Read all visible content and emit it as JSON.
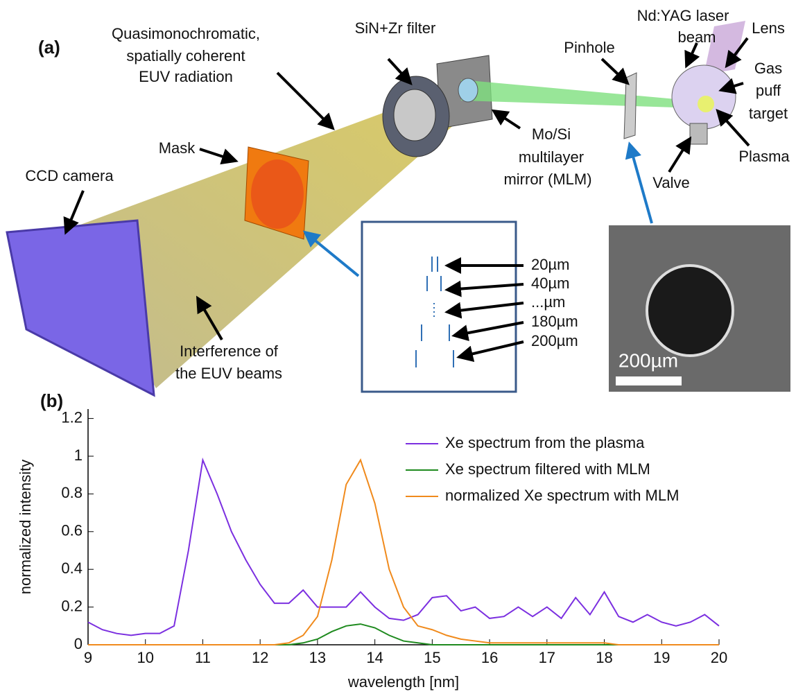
{
  "diagram": {
    "panel_a": "(a)",
    "quasi": [
      "Quasimonochromatic,",
      "spatially coherent",
      "EUV radiation"
    ],
    "filter": "SiN+Zr filter",
    "pinhole": "Pinhole",
    "laser": [
      "Nd:YAG laser",
      "beam"
    ],
    "lens": "Lens",
    "gas": [
      "Gas",
      "puff",
      "target"
    ],
    "plasma": "Plasma",
    "valve": "Valve",
    "mirror": [
      "Mo/Si",
      "multilayer",
      "mirror (MLM)"
    ],
    "mask": "Mask",
    "ccd": "CCD camera",
    "interference": [
      "Interference of",
      "the EUV beams"
    ],
    "slits": [
      "20µm",
      "40µm",
      "...µm",
      "180µm",
      "200µm"
    ],
    "scale_bar": "200µm",
    "panel_b": "(b)"
  },
  "chart_data": {
    "type": "line",
    "x_label": "wavelength [nm]",
    "y_label": "normalized intensity",
    "x": [
      9,
      9.25,
      9.5,
      9.75,
      10,
      10.25,
      10.5,
      10.75,
      11,
      11.25,
      11.5,
      11.75,
      12,
      12.25,
      12.5,
      12.75,
      13,
      13.25,
      13.5,
      13.75,
      14,
      14.25,
      14.5,
      14.75,
      15,
      15.25,
      15.5,
      15.75,
      16,
      16.25,
      16.5,
      16.75,
      17,
      17.25,
      17.5,
      17.75,
      18,
      18.25,
      18.5,
      18.75,
      19,
      19.25,
      19.5,
      19.75,
      20
    ],
    "series": [
      {
        "name": "Xe spectrum from the plasma",
        "color": "#7b2fe0",
        "values": [
          0.12,
          0.08,
          0.06,
          0.05,
          0.06,
          0.06,
          0.1,
          0.5,
          0.98,
          0.8,
          0.6,
          0.45,
          0.32,
          0.22,
          0.22,
          0.29,
          0.2,
          0.2,
          0.2,
          0.28,
          0.2,
          0.14,
          0.13,
          0.16,
          0.25,
          0.26,
          0.18,
          0.2,
          0.14,
          0.15,
          0.2,
          0.15,
          0.2,
          0.14,
          0.25,
          0.16,
          0.28,
          0.15,
          0.12,
          0.16,
          0.12,
          0.1,
          0.12,
          0.16,
          0.1
        ]
      },
      {
        "name": "Xe spectrum filtered with MLM",
        "color": "#1e8a1e",
        "values": [
          0,
          0,
          0,
          0,
          0,
          0,
          0,
          0,
          0,
          0,
          0,
          0,
          0,
          0,
          0,
          0.01,
          0.03,
          0.07,
          0.1,
          0.11,
          0.09,
          0.05,
          0.02,
          0.01,
          0,
          0,
          0,
          0,
          0,
          0,
          0,
          0,
          0,
          0,
          0,
          0,
          0,
          0,
          0,
          0,
          0,
          0,
          0,
          0,
          0
        ]
      },
      {
        "name": "normalized Xe spectrum with MLM",
        "color": "#f08a1c",
        "values": [
          0,
          0,
          0,
          0,
          0,
          0,
          0,
          0,
          0,
          0,
          0,
          0,
          0,
          0,
          0.01,
          0.05,
          0.15,
          0.45,
          0.85,
          0.98,
          0.75,
          0.4,
          0.2,
          0.1,
          0.08,
          0.05,
          0.03,
          0.02,
          0.01,
          0.01,
          0.01,
          0.01,
          0.01,
          0.01,
          0.01,
          0.01,
          0.01,
          0,
          0,
          0,
          0,
          0,
          0,
          0,
          0
        ]
      }
    ],
    "xlim": [
      9,
      20
    ],
    "xticks": [
      9,
      10,
      11,
      12,
      13,
      14,
      15,
      16,
      17,
      18,
      19,
      20
    ],
    "ylim": [
      0,
      1.25
    ],
    "yticks": [
      0,
      0.2,
      0.4,
      0.6,
      0.8,
      1,
      1.2
    ]
  }
}
